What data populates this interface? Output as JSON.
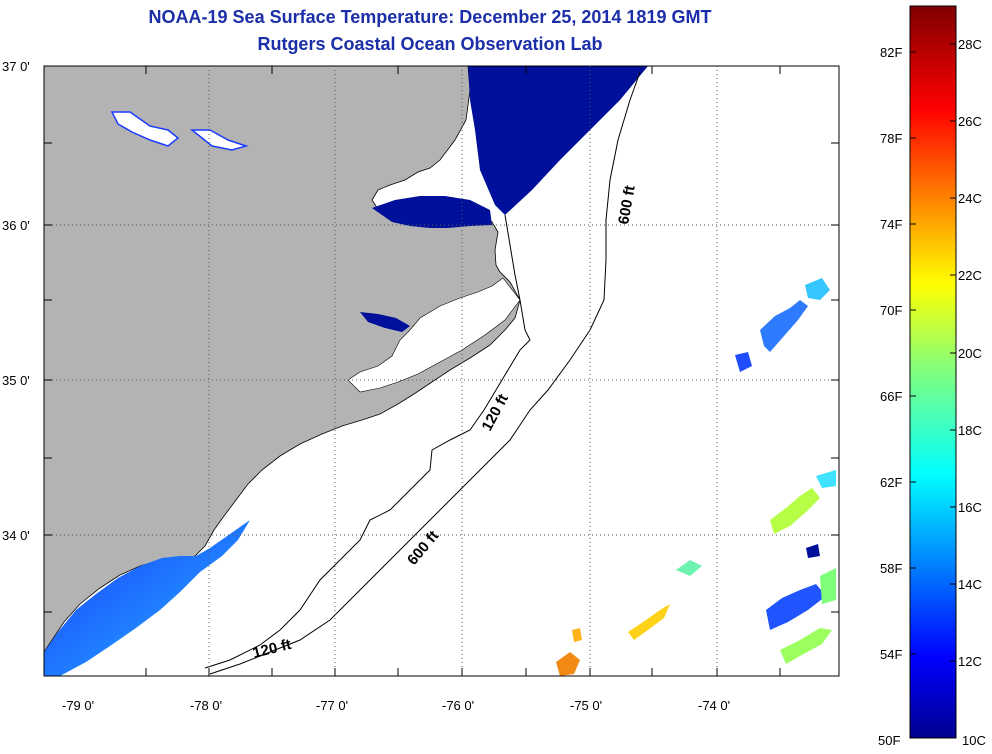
{
  "header": {
    "title": "NOAA-19 Sea Surface Temperature:  December 25, 2014 1819 GMT",
    "subtitle": "Rutgers Coastal Ocean Observation Lab"
  },
  "map": {
    "lat_ticks": [
      "37 0'",
      "36 0'",
      "35 0'",
      "34 0'"
    ],
    "lon_ticks": [
      "-79 0'",
      "-78 0'",
      "-77 0'",
      "-76 0'",
      "-75 0'",
      "-74 0'"
    ],
    "contours": [
      {
        "label": "600 ft"
      },
      {
        "label": "120 ft"
      },
      {
        "label": "600 ft"
      },
      {
        "label": "120 ft"
      }
    ],
    "colors": {
      "land": "#b3b3b3",
      "ocean": "#ffffff",
      "cold_water": "#00109a"
    }
  },
  "colorbar": {
    "fahrenheit": [
      "82F",
      "78F",
      "74F",
      "70F",
      "66F",
      "62F",
      "58F",
      "54F",
      "50F"
    ],
    "celsius": [
      "28C",
      "26C",
      "24C",
      "22C",
      "20C",
      "18C",
      "16C",
      "14C",
      "12C",
      "10C"
    ],
    "colormap": "jet"
  }
}
